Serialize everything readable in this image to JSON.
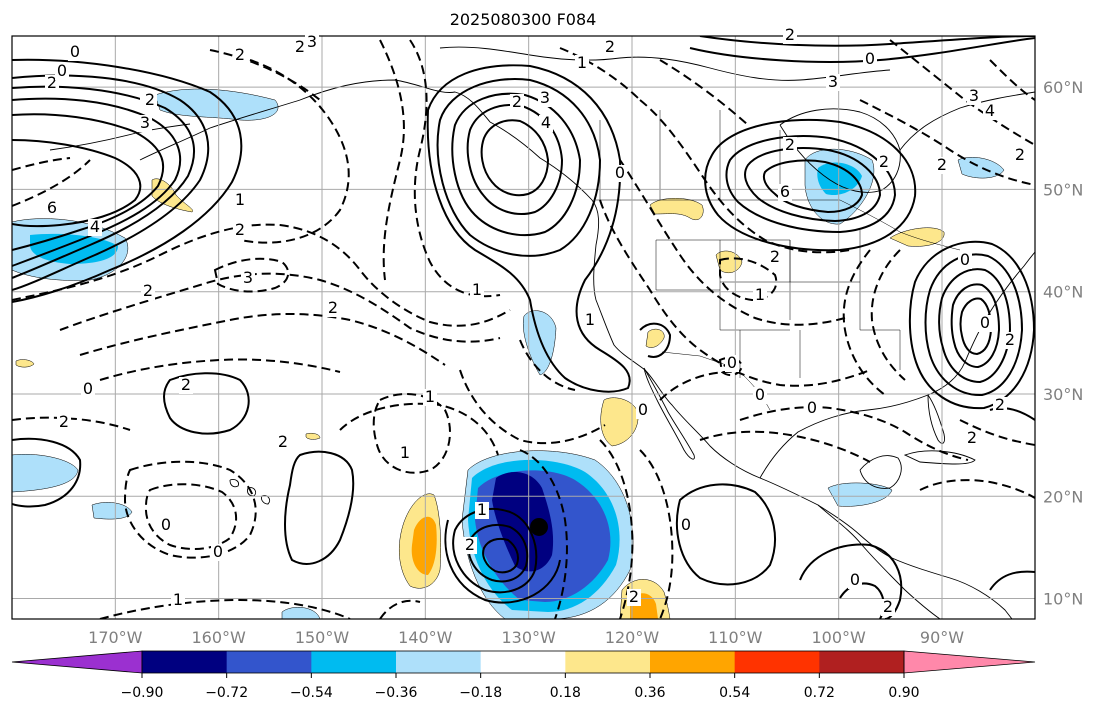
{
  "title": "2025080300 F084",
  "map": {
    "lon_range": [
      -180,
      -81
    ],
    "lat_range": [
      8,
      65
    ],
    "lon_ticks": [
      -170,
      -160,
      -150,
      -140,
      -130,
      -120,
      -110,
      -100,
      -90
    ],
    "lon_tick_labels": [
      "170°W",
      "160°W",
      "150°W",
      "140°W",
      "130°W",
      "120°W",
      "110°W",
      "100°W",
      "90°W"
    ],
    "lat_ticks": [
      10,
      20,
      30,
      40,
      50,
      60
    ],
    "lat_tick_labels": [
      "10°N",
      "20°N",
      "30°N",
      "40°N",
      "50°N",
      "60°N"
    ],
    "grid": true,
    "contour_labels": [
      "0",
      "2",
      "3",
      "2",
      "0",
      "2",
      "2",
      "3",
      "2",
      "1",
      "2",
      "2",
      "3",
      "0",
      "2",
      "3",
      "4",
      "6",
      "4",
      "2",
      "1",
      "3",
      "2",
      "1",
      "2",
      "1",
      "0",
      "0",
      "2",
      "2",
      "2",
      "6",
      "2",
      "4",
      "3",
      "2",
      "2",
      "2",
      "1",
      "0",
      "0",
      "0",
      "0",
      "1",
      "2",
      "1",
      "0",
      "0",
      "1",
      "2",
      "0",
      "0",
      "2",
      "1",
      "2",
      "0",
      "0",
      "2",
      "2",
      "2"
    ],
    "marker": {
      "lon": -129,
      "lat": 17,
      "color": "#000000"
    }
  },
  "colorbar": {
    "tick_labels": [
      "−0.90",
      "−0.72",
      "−0.54",
      "−0.36",
      "−0.18",
      "0.18",
      "0.36",
      "0.54",
      "0.72",
      "0.90"
    ],
    "under_color": "#9b30d0",
    "over_color": "#ff88aa",
    "bin_colors": [
      "#000080",
      "#3355cc",
      "#00bbf0",
      "#aee0fa",
      "#ffffff",
      "#fde78c",
      "#ffa500",
      "#ff3300",
      "#b02020"
    ]
  }
}
